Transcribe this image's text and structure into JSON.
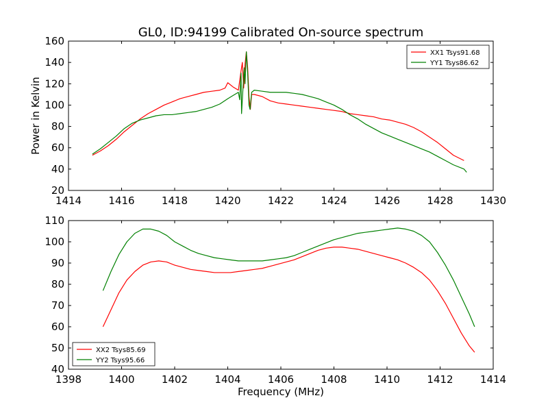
{
  "title": "GL0, ID:94199 Calibrated On-source spectrum",
  "chart_data": [
    {
      "type": "line",
      "title": "GL0, ID:94199 Calibrated On-source spectrum",
      "xlabel": "",
      "ylabel": "Power in Kelvin",
      "xlim": [
        1414,
        1430
      ],
      "ylim": [
        20,
        160
      ],
      "xticks": [
        1414,
        1416,
        1418,
        1420,
        1422,
        1424,
        1426,
        1428,
        1430
      ],
      "yticks": [
        20,
        40,
        60,
        80,
        100,
        120,
        140,
        160
      ],
      "grid": false,
      "legend_position": "top-right",
      "series": [
        {
          "name": "XX1 Tsys91.68",
          "color": "#ff0000",
          "points": [
            [
              1414.9,
              53
            ],
            [
              1415.2,
              57
            ],
            [
              1415.5,
              62
            ],
            [
              1415.8,
              68
            ],
            [
              1416.1,
              75
            ],
            [
              1416.4,
              81
            ],
            [
              1416.7,
              87
            ],
            [
              1417.0,
              92
            ],
            [
              1417.3,
              96
            ],
            [
              1417.6,
              100
            ],
            [
              1417.9,
              103
            ],
            [
              1418.2,
              106
            ],
            [
              1418.5,
              108
            ],
            [
              1418.8,
              110
            ],
            [
              1419.1,
              112
            ],
            [
              1419.4,
              113
            ],
            [
              1419.7,
              114
            ],
            [
              1419.9,
              116
            ],
            [
              1420.0,
              121
            ],
            [
              1420.2,
              117
            ],
            [
              1420.4,
              114
            ],
            [
              1420.5,
              132
            ],
            [
              1420.55,
              140
            ],
            [
              1420.6,
              116
            ],
            [
              1420.65,
              138
            ],
            [
              1420.7,
              150
            ],
            [
              1420.75,
              135
            ],
            [
              1420.8,
              108
            ],
            [
              1420.85,
              96
            ],
            [
              1420.9,
              110
            ],
            [
              1421.0,
              110
            ],
            [
              1421.3,
              108
            ],
            [
              1421.6,
              104
            ],
            [
              1421.9,
              102
            ],
            [
              1422.2,
              101
            ],
            [
              1422.5,
              100
            ],
            [
              1422.8,
              99
            ],
            [
              1423.1,
              98
            ],
            [
              1423.4,
              97
            ],
            [
              1423.7,
              96
            ],
            [
              1424.0,
              95
            ],
            [
              1424.3,
              94
            ],
            [
              1424.6,
              92
            ],
            [
              1424.9,
              91
            ],
            [
              1425.2,
              90
            ],
            [
              1425.5,
              89
            ],
            [
              1425.8,
              87
            ],
            [
              1426.1,
              86
            ],
            [
              1426.4,
              84
            ],
            [
              1426.7,
              82
            ],
            [
              1427.0,
              79
            ],
            [
              1427.3,
              75
            ],
            [
              1427.6,
              70
            ],
            [
              1427.9,
              65
            ],
            [
              1428.2,
              59
            ],
            [
              1428.5,
              53
            ],
            [
              1428.9,
              48
            ]
          ]
        },
        {
          "name": "YY1 Tsys86.62",
          "color": "#008000",
          "points": [
            [
              1414.9,
              54
            ],
            [
              1415.2,
              59
            ],
            [
              1415.5,
              65
            ],
            [
              1415.8,
              71
            ],
            [
              1416.1,
              78
            ],
            [
              1416.4,
              83
            ],
            [
              1416.7,
              86
            ],
            [
              1417.0,
              88
            ],
            [
              1417.3,
              90
            ],
            [
              1417.6,
              91
            ],
            [
              1417.9,
              91
            ],
            [
              1418.2,
              92
            ],
            [
              1418.5,
              93
            ],
            [
              1418.8,
              94
            ],
            [
              1419.1,
              96
            ],
            [
              1419.4,
              98
            ],
            [
              1419.7,
              101
            ],
            [
              1420.0,
              106
            ],
            [
              1420.2,
              109
            ],
            [
              1420.4,
              112
            ],
            [
              1420.45,
              105
            ],
            [
              1420.5,
              130
            ],
            [
              1420.52,
              92
            ],
            [
              1420.56,
              110
            ],
            [
              1420.62,
              135
            ],
            [
              1420.65,
              120
            ],
            [
              1420.7,
              150
            ],
            [
              1420.75,
              130
            ],
            [
              1420.8,
              100
            ],
            [
              1420.84,
              96
            ],
            [
              1420.9,
              112
            ],
            [
              1421.0,
              114
            ],
            [
              1421.3,
              113
            ],
            [
              1421.6,
              112
            ],
            [
              1421.9,
              112
            ],
            [
              1422.2,
              112
            ],
            [
              1422.5,
              111
            ],
            [
              1422.8,
              110
            ],
            [
              1423.1,
              108
            ],
            [
              1423.4,
              106
            ],
            [
              1423.7,
              103
            ],
            [
              1424.0,
              100
            ],
            [
              1424.3,
              96
            ],
            [
              1424.6,
              91
            ],
            [
              1424.9,
              87
            ],
            [
              1425.2,
              82
            ],
            [
              1425.5,
              78
            ],
            [
              1425.8,
              74
            ],
            [
              1426.1,
              71
            ],
            [
              1426.4,
              68
            ],
            [
              1426.7,
              65
            ],
            [
              1427.0,
              62
            ],
            [
              1427.3,
              59
            ],
            [
              1427.6,
              56
            ],
            [
              1427.9,
              52
            ],
            [
              1428.2,
              48
            ],
            [
              1428.5,
              44
            ],
            [
              1428.9,
              40
            ],
            [
              1429.0,
              37
            ]
          ]
        }
      ]
    },
    {
      "type": "line",
      "title": "",
      "xlabel": "Frequency (MHz)",
      "ylabel": "",
      "xlim": [
        1398,
        1414
      ],
      "ylim": [
        40,
        110
      ],
      "xticks": [
        1398,
        1400,
        1402,
        1404,
        1406,
        1408,
        1410,
        1412,
        1414
      ],
      "yticks": [
        40,
        50,
        60,
        70,
        80,
        90,
        100,
        110
      ],
      "grid": false,
      "legend_position": "bottom-left",
      "series": [
        {
          "name": "XX2 Tsys85.69",
          "color": "#ff0000",
          "points": [
            [
              1399.3,
              60
            ],
            [
              1399.6,
              68
            ],
            [
              1399.9,
              76
            ],
            [
              1400.2,
              82
            ],
            [
              1400.5,
              86
            ],
            [
              1400.8,
              89
            ],
            [
              1401.1,
              90.5
            ],
            [
              1401.4,
              91
            ],
            [
              1401.7,
              90.5
            ],
            [
              1402.0,
              89
            ],
            [
              1402.3,
              88
            ],
            [
              1402.6,
              87
            ],
            [
              1402.9,
              86.5
            ],
            [
              1403.2,
              86
            ],
            [
              1403.5,
              85.5
            ],
            [
              1403.8,
              85.5
            ],
            [
              1404.1,
              85.5
            ],
            [
              1404.4,
              86
            ],
            [
              1404.7,
              86.5
            ],
            [
              1405.0,
              87
            ],
            [
              1405.3,
              87.5
            ],
            [
              1405.6,
              88.5
            ],
            [
              1405.9,
              89.5
            ],
            [
              1406.2,
              90.5
            ],
            [
              1406.5,
              91.5
            ],
            [
              1406.8,
              93
            ],
            [
              1407.1,
              94.5
            ],
            [
              1407.4,
              96
            ],
            [
              1407.7,
              97
            ],
            [
              1408.0,
              97.5
            ],
            [
              1408.3,
              97.5
            ],
            [
              1408.6,
              97
            ],
            [
              1408.9,
              96.5
            ],
            [
              1409.2,
              95.5
            ],
            [
              1409.5,
              94.5
            ],
            [
              1409.8,
              93.5
            ],
            [
              1410.1,
              92.5
            ],
            [
              1410.4,
              91.5
            ],
            [
              1410.7,
              90
            ],
            [
              1411.0,
              88
            ],
            [
              1411.3,
              85.5
            ],
            [
              1411.6,
              82
            ],
            [
              1411.9,
              77
            ],
            [
              1412.2,
              71
            ],
            [
              1412.5,
              64
            ],
            [
              1412.8,
              57
            ],
            [
              1413.1,
              51
            ],
            [
              1413.3,
              48
            ]
          ]
        },
        {
          "name": "YY2 Tsys95.66",
          "color": "#008000",
          "points": [
            [
              1399.3,
              77
            ],
            [
              1399.6,
              86
            ],
            [
              1399.9,
              94
            ],
            [
              1400.2,
              100
            ],
            [
              1400.5,
              104
            ],
            [
              1400.8,
              106
            ],
            [
              1401.1,
              106
            ],
            [
              1401.4,
              105
            ],
            [
              1401.7,
              103
            ],
            [
              1402.0,
              100
            ],
            [
              1402.3,
              98
            ],
            [
              1402.6,
              96
            ],
            [
              1402.9,
              94.5
            ],
            [
              1403.2,
              93.5
            ],
            [
              1403.5,
              92.5
            ],
            [
              1403.8,
              92
            ],
            [
              1404.1,
              91.5
            ],
            [
              1404.4,
              91
            ],
            [
              1404.7,
              91
            ],
            [
              1405.0,
              91
            ],
            [
              1405.3,
              91
            ],
            [
              1405.6,
              91.5
            ],
            [
              1405.9,
              92
            ],
            [
              1406.2,
              92.5
            ],
            [
              1406.5,
              93.5
            ],
            [
              1406.8,
              95
            ],
            [
              1407.1,
              96.5
            ],
            [
              1407.4,
              98
            ],
            [
              1407.7,
              99.5
            ],
            [
              1408.0,
              101
            ],
            [
              1408.3,
              102
            ],
            [
              1408.6,
              103
            ],
            [
              1408.9,
              104
            ],
            [
              1409.2,
              104.5
            ],
            [
              1409.5,
              105
            ],
            [
              1409.8,
              105.5
            ],
            [
              1410.1,
              106
            ],
            [
              1410.4,
              106.5
            ],
            [
              1410.7,
              106
            ],
            [
              1411.0,
              105
            ],
            [
              1411.3,
              103
            ],
            [
              1411.6,
              100
            ],
            [
              1411.9,
              95
            ],
            [
              1412.2,
              89
            ],
            [
              1412.5,
              82
            ],
            [
              1412.8,
              74
            ],
            [
              1413.1,
              66
            ],
            [
              1413.3,
              60
            ]
          ]
        }
      ]
    }
  ]
}
